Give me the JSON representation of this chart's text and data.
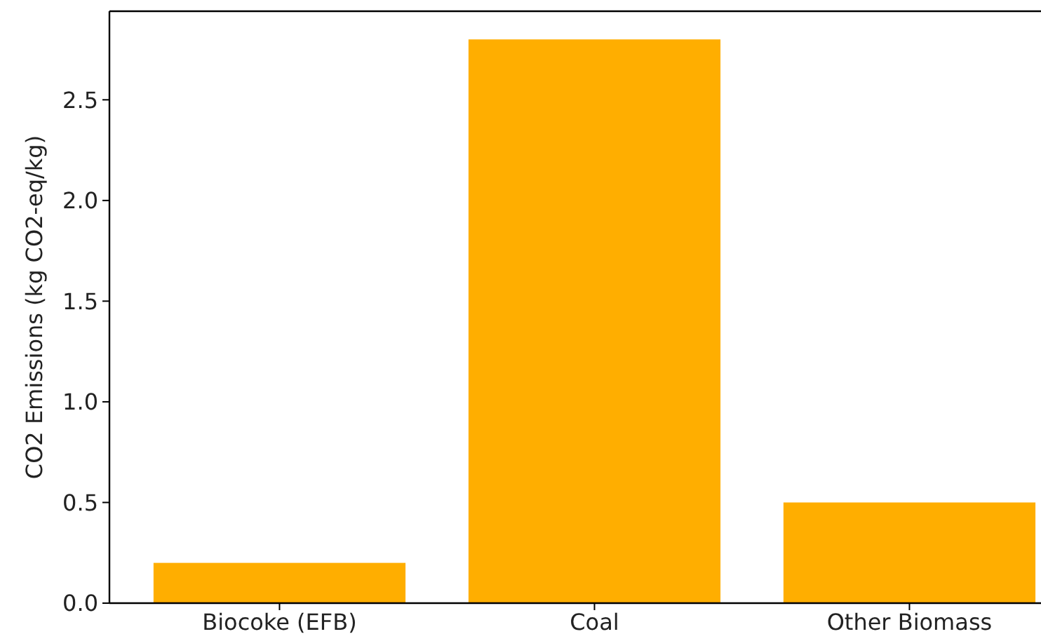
{
  "chart_data": {
    "type": "bar",
    "ylabel": "CO2 Emissions (kg CO2-eq/kg)",
    "categories": [
      "Biocoke (EFB)",
      "Coal",
      "Other Biomass"
    ],
    "values": [
      0.2,
      2.8,
      0.5
    ],
    "color": "#ffae00",
    "ylim": [
      0,
      2.94
    ],
    "yticks": [
      {
        "value": 0,
        "label": "0.0"
      },
      {
        "value": 0.5,
        "label": "0.5"
      },
      {
        "value": 1,
        "label": "1.0"
      },
      {
        "value": 1.5,
        "label": "1.5"
      },
      {
        "value": 2,
        "label": "2.0"
      },
      {
        "value": 2.5,
        "label": "2.5"
      }
    ]
  }
}
